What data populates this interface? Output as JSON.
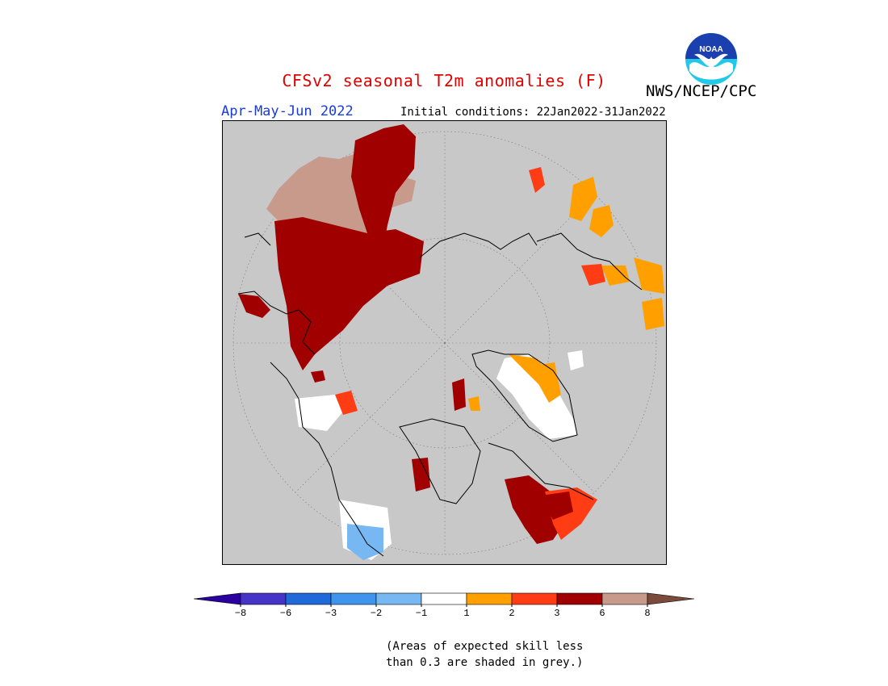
{
  "header": {
    "title": "CFSv2 seasonal T2m anomalies (F)",
    "organization": "NWS/NCEP/CPC",
    "season": "Apr-May-Jun 2022",
    "initial_conditions": "Initial conditions: 22Jan2022-31Jan2022",
    "logo_text": "NOAA"
  },
  "map": {
    "projection": "polar stereographic (North Pole)",
    "background_color": "#c8c8c8",
    "border_color": "#000000"
  },
  "legend": {
    "labels": [
      "-8",
      "-6",
      "-3",
      "-2",
      "-1",
      "1",
      "2",
      "3",
      "6",
      "8"
    ],
    "colors": [
      "#2a00a0",
      "#4634c9",
      "#1f6ad8",
      "#3f95ee",
      "#78b8f2",
      "#ffffff",
      "#ffa000",
      "#ff3c14",
      "#a00000",
      "#c89a8c",
      "#7a4a3a"
    ]
  },
  "footnote": {
    "line1": "(Areas of expected skill less",
    "line2": "than 0.3 are shaded in grey.)"
  }
}
